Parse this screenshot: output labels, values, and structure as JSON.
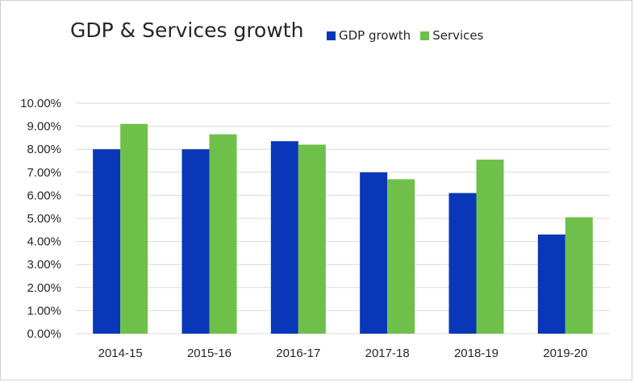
{
  "chart_data": {
    "type": "bar",
    "title": "GDP & Services growth",
    "categories": [
      "2014-15",
      "2015-16",
      "2016-17",
      "2017-18",
      "2018-19",
      "2019-20"
    ],
    "series": [
      {
        "name": "GDP growth",
        "color": "#0a36b8",
        "values": [
          8.0,
          8.0,
          8.35,
          7.0,
          6.1,
          4.3
        ]
      },
      {
        "name": "Services",
        "color": "#6fc04a",
        "values": [
          9.1,
          8.65,
          8.2,
          6.7,
          7.55,
          5.05
        ]
      }
    ],
    "yticks": [
      "0.00%",
      "1.00%",
      "2.00%",
      "3.00%",
      "4.00%",
      "5.00%",
      "6.00%",
      "7.00%",
      "8.00%",
      "9.00%",
      "10.00%"
    ],
    "ylim": [
      0,
      10
    ],
    "xlabel": "",
    "ylabel": "",
    "grid": true,
    "legend_position": "top-right"
  }
}
